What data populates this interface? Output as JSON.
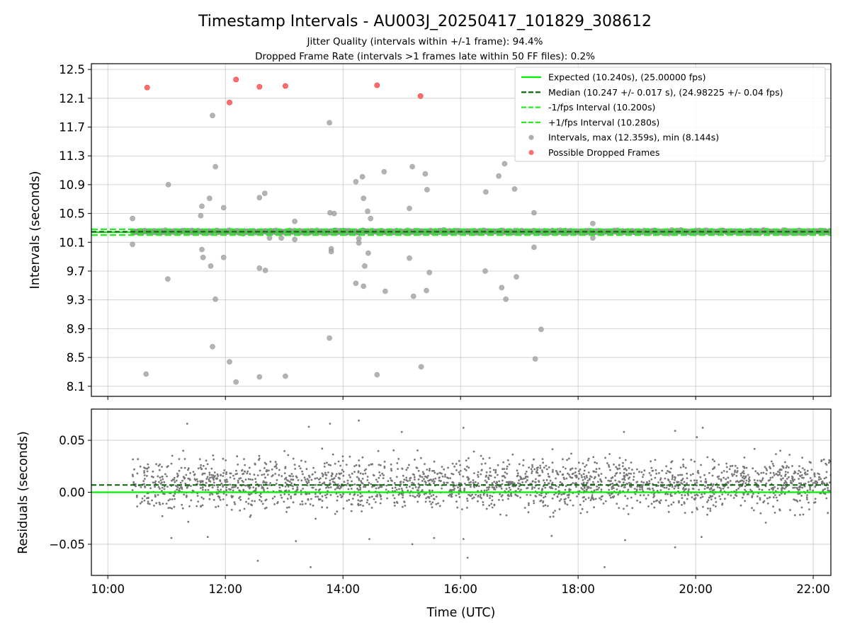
{
  "chart_data": {
    "title": "Timestamp Intervals - AU003J_20250417_101829_308612",
    "subtitle_1": "Jitter Quality (intervals within +/-1 frame): 94.4%",
    "subtitle_2": "Dropped Frame Rate (intervals >1 frames late within 50 FF files): 0.2%",
    "xlabel": "Time (UTC)",
    "xlim_hours": [
      9.72,
      22.3
    ],
    "x_ticks": [
      {
        "value": 10,
        "label": "10:00"
      },
      {
        "value": 12,
        "label": "12:00"
      },
      {
        "value": 14,
        "label": "14:00"
      },
      {
        "value": 16,
        "label": "16:00"
      },
      {
        "value": 18,
        "label": "18:00"
      },
      {
        "value": 20,
        "label": "20:00"
      },
      {
        "value": 22,
        "label": "22:00"
      }
    ],
    "data_x_range_hours": [
      10.42,
      22.3
    ],
    "colors": {
      "expected": "#00ee00",
      "median": "#006400",
      "bound": "#22ee22",
      "interval_point": "#a0a0a0",
      "dropped_point": "#ff5555",
      "residual_point": "#777777"
    },
    "top_panel": {
      "type": "scatter",
      "ylabel": "Intervals (seconds)",
      "ylim": [
        7.96,
        12.58
      ],
      "y_ticks": [
        {
          "value": 8.1,
          "label": "8.1"
        },
        {
          "value": 8.5,
          "label": "8.5"
        },
        {
          "value": 8.9,
          "label": "8.9"
        },
        {
          "value": 9.3,
          "label": "9.3"
        },
        {
          "value": 9.7,
          "label": "9.7"
        },
        {
          "value": 10.1,
          "label": "10.1"
        },
        {
          "value": 10.5,
          "label": "10.5"
        },
        {
          "value": 10.9,
          "label": "10.9"
        },
        {
          "value": 11.3,
          "label": "11.3"
        },
        {
          "value": 11.7,
          "label": "11.7"
        },
        {
          "value": 12.1,
          "label": "12.1"
        },
        {
          "value": 12.5,
          "label": "12.5"
        }
      ],
      "grid": true,
      "lines": {
        "expected": 10.24,
        "median": 10.247,
        "minus_1fps": 10.2,
        "plus_1fps": 10.28
      },
      "legend_placement": "top-right",
      "legend": [
        {
          "label": "Expected (10.240s), (25.00000 fps)",
          "kind": "solid",
          "color": "#00ee00"
        },
        {
          "label": "Median (10.247 +/- 0.017 s), (24.98225 +/- 0.04 fps)",
          "kind": "dashed",
          "color": "#006400"
        },
        {
          "label": "-1/fps Interval (10.200s)",
          "kind": "dashed",
          "color": "#22ee22"
        },
        {
          "label": "+1/fps Interval (10.280s)",
          "kind": "dashed",
          "color": "#22ee22"
        },
        {
          "label": "Intervals, max (12.359s), min (8.144s)",
          "kind": "dot",
          "color": "#a0a0a0"
        },
        {
          "label": "Possible Dropped Frames",
          "kind": "dot",
          "color": "#ff5555"
        }
      ],
      "outlier_intervals": [
        [
          10.42,
          10.43
        ],
        [
          10.42,
          10.07
        ],
        [
          10.65,
          8.27
        ],
        [
          11.03,
          10.9
        ],
        [
          11.02,
          9.59
        ],
        [
          11.58,
          10.47
        ],
        [
          11.6,
          10.6
        ],
        [
          11.62,
          9.89
        ],
        [
          11.6,
          10.0
        ],
        [
          11.73,
          10.71
        ],
        [
          11.75,
          9.77
        ],
        [
          11.78,
          8.65
        ],
        [
          11.78,
          11.86
        ],
        [
          11.83,
          9.31
        ],
        [
          11.83,
          11.15
        ],
        [
          11.97,
          10.58
        ],
        [
          11.97,
          9.89
        ],
        [
          12.07,
          8.44
        ],
        [
          12.18,
          8.16
        ],
        [
          12.58,
          10.72
        ],
        [
          12.58,
          9.74
        ],
        [
          12.58,
          8.23
        ],
        [
          12.67,
          10.78
        ],
        [
          12.68,
          9.71
        ],
        [
          12.75,
          10.16
        ],
        [
          12.95,
          10.16
        ],
        [
          13.02,
          8.24
        ],
        [
          13.18,
          10.39
        ],
        [
          13.18,
          10.14
        ],
        [
          13.77,
          11.76
        ],
        [
          13.77,
          8.77
        ],
        [
          13.78,
          10.51
        ],
        [
          13.8,
          10.01
        ],
        [
          13.8,
          9.97
        ],
        [
          13.85,
          10.5
        ],
        [
          14.22,
          10.94
        ],
        [
          14.22,
          9.53
        ],
        [
          14.27,
          10.15
        ],
        [
          14.27,
          10.09
        ],
        [
          14.33,
          11.01
        ],
        [
          14.35,
          9.49
        ],
        [
          14.35,
          10.71
        ],
        [
          14.37,
          9.77
        ],
        [
          14.42,
          10.53
        ],
        [
          14.43,
          9.95
        ],
        [
          14.47,
          10.43
        ],
        [
          14.58,
          8.26
        ],
        [
          14.7,
          11.08
        ],
        [
          14.72,
          9.42
        ],
        [
          15.13,
          10.57
        ],
        [
          15.13,
          9.88
        ],
        [
          15.18,
          11.15
        ],
        [
          15.2,
          9.35
        ],
        [
          15.33,
          8.37
        ],
        [
          15.4,
          11.05
        ],
        [
          15.42,
          9.43
        ],
        [
          15.43,
          10.83
        ],
        [
          15.47,
          9.68
        ],
        [
          16.43,
          10.8
        ],
        [
          16.42,
          9.7
        ],
        [
          16.65,
          11.02
        ],
        [
          16.7,
          9.47
        ],
        [
          16.75,
          11.19
        ],
        [
          16.77,
          9.31
        ],
        [
          16.92,
          10.84
        ],
        [
          16.95,
          9.62
        ],
        [
          17.25,
          10.51
        ],
        [
          17.25,
          10.03
        ],
        [
          17.27,
          8.48
        ],
        [
          17.37,
          8.89
        ],
        [
          18.25,
          10.36
        ],
        [
          18.25,
          10.16
        ]
      ],
      "dropped_frames": [
        [
          10.67,
          12.25
        ],
        [
          12.07,
          12.04
        ],
        [
          12.18,
          12.36
        ],
        [
          12.58,
          12.26
        ],
        [
          13.02,
          12.27
        ],
        [
          14.58,
          12.28
        ],
        [
          15.32,
          12.13
        ]
      ]
    },
    "bottom_panel": {
      "type": "scatter",
      "ylabel": "Residuals (seconds)",
      "ylim": [
        -0.08,
        0.08
      ],
      "y_ticks": [
        {
          "value": -0.05,
          "label": "−0.05"
        },
        {
          "value": 0.0,
          "label": "0.00"
        },
        {
          "value": 0.05,
          "label": "0.05"
        }
      ],
      "grid": true,
      "lines": {
        "expected": 0.0,
        "median": 0.007
      },
      "residual_outliers": [
        [
          11.35,
          0.066
        ],
        [
          13.78,
          0.066
        ],
        [
          14.27,
          0.069
        ],
        [
          13.42,
          0.063
        ],
        [
          15.0,
          0.058
        ],
        [
          16.05,
          0.062
        ],
        [
          18.78,
          0.058
        ],
        [
          19.65,
          0.059
        ],
        [
          20.12,
          0.062
        ],
        [
          20.02,
          0.053
        ],
        [
          12.55,
          -0.066
        ],
        [
          13.45,
          -0.072
        ],
        [
          15.18,
          -0.05
        ],
        [
          16.05,
          -0.045
        ],
        [
          16.12,
          -0.063
        ],
        [
          18.45,
          -0.072
        ],
        [
          19.65,
          -0.053
        ],
        [
          11.08,
          -0.044
        ],
        [
          11.7,
          -0.043
        ],
        [
          13.2,
          -0.047
        ],
        [
          14.45,
          -0.045
        ],
        [
          15.55,
          -0.044
        ],
        [
          17.55,
          -0.042
        ],
        [
          18.8,
          -0.046
        ],
        [
          20.1,
          -0.043
        ]
      ]
    }
  }
}
